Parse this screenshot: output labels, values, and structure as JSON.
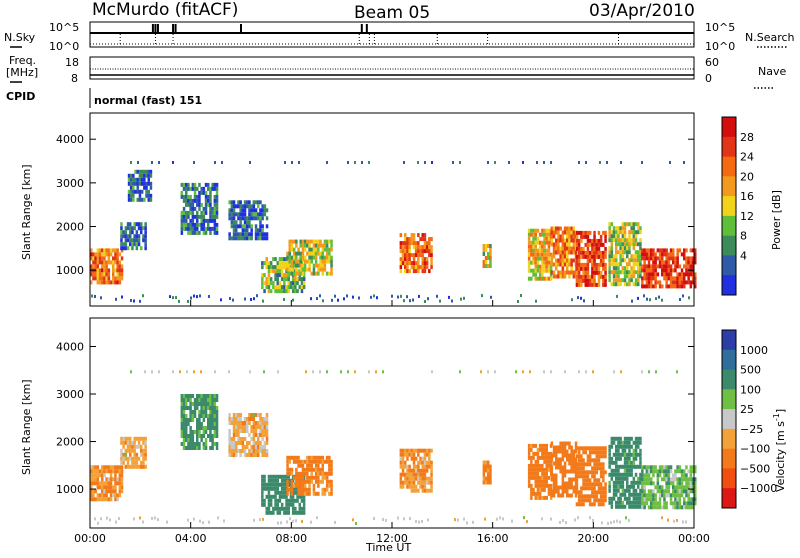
{
  "header": {
    "station": "McMurdo (fitACF)",
    "beam": "Beam 05",
    "date": "03/Apr/2010"
  },
  "colors": {
    "power": [
      "#2030e0",
      "#2e5aa8",
      "#3d8a5a",
      "#5fbf3a",
      "#f2d21a",
      "#f39a1e",
      "#f36a12",
      "#e23518",
      "#d40d0d"
    ],
    "velocity": [
      "#2c3ea6",
      "#2f6e9a",
      "#3b8a6b",
      "#6fbf44",
      "#c8c8c8",
      "#f3a23a",
      "#f37a1a",
      "#f24e12",
      "#dd1616"
    ]
  },
  "chart_data": [
    {
      "type": "line",
      "panel": "noise",
      "ylabel_left": "N.Sky",
      "ylabel_right": "N.Search",
      "ticks_left": [
        "10^5",
        "10^0"
      ],
      "ticks_right": [
        "10^5",
        "10^0"
      ]
    },
    {
      "type": "line",
      "panel": "frequency",
      "ylabel_left": "Freq.\n[MHz]",
      "ylabel_right": "Nave",
      "ticks_left": [
        "18",
        "8"
      ],
      "ticks_right": [
        "60",
        "0"
      ],
      "ylim_left": [
        8,
        18
      ],
      "ylim_right": [
        0,
        60
      ]
    },
    {
      "type": "table",
      "panel": "cpid",
      "label": "CPID",
      "value": "normal (fast) 151"
    },
    {
      "type": "heatmap",
      "panel": "power",
      "ylabel": "Slant Range [km]",
      "yticks": [
        "1000",
        "2000",
        "3000",
        "4000"
      ],
      "ylim": [
        180,
        4600
      ],
      "xlim": [
        0,
        24
      ],
      "colorbar": {
        "label": "Power [dB]",
        "ticks": [
          "28",
          "24",
          "20",
          "16",
          "12",
          "8",
          "4"
        ],
        "range": [
          0,
          30
        ]
      },
      "echo_regions": [
        {
          "t0": 0.0,
          "t1": 1.3,
          "r0": 750,
          "r1": 1500,
          "v": 21
        },
        {
          "t0": 1.2,
          "t1": 2.2,
          "r0": 1500,
          "r1": 2100,
          "v": 6
        },
        {
          "t0": 1.5,
          "t1": 2.4,
          "r0": 2600,
          "r1": 3300,
          "v": 5
        },
        {
          "t0": 3.6,
          "t1": 5.0,
          "r0": 1900,
          "r1": 3000,
          "v": 6
        },
        {
          "t0": 5.5,
          "t1": 7.0,
          "r0": 1700,
          "r1": 2600,
          "v": 5
        },
        {
          "t0": 6.8,
          "t1": 8.5,
          "r0": 500,
          "r1": 1300,
          "v": 12
        },
        {
          "t0": 7.8,
          "t1": 9.6,
          "r0": 900,
          "r1": 1700,
          "v": 14
        },
        {
          "t0": 12.3,
          "t1": 13.6,
          "r0": 1000,
          "r1": 1850,
          "v": 22
        },
        {
          "t0": 15.6,
          "t1": 15.9,
          "r0": 1100,
          "r1": 1600,
          "v": 15
        },
        {
          "t0": 17.4,
          "t1": 18.3,
          "r0": 800,
          "r1": 1950,
          "v": 17
        },
        {
          "t0": 18.3,
          "t1": 19.3,
          "r0": 900,
          "r1": 2000,
          "v": 20
        },
        {
          "t0": 19.3,
          "t1": 20.5,
          "r0": 700,
          "r1": 1900,
          "v": 25
        },
        {
          "t0": 20.6,
          "t1": 21.9,
          "r0": 650,
          "r1": 2100,
          "v": 14
        },
        {
          "t0": 21.9,
          "t1": 24.0,
          "r0": 600,
          "r1": 1500,
          "v": 26
        }
      ]
    },
    {
      "type": "heatmap",
      "panel": "velocity",
      "ylabel": "Slant Range [km]",
      "yticks": [
        "1000",
        "2000",
        "3000",
        "4000"
      ],
      "ylim": [
        180,
        4600
      ],
      "xlim": [
        0,
        24
      ],
      "xticks": [
        "00:00",
        "04:00",
        "08:00",
        "12:00",
        "16:00",
        "20:00",
        "00:00"
      ],
      "xlabel": "Time UT",
      "colorbar": {
        "label": "Velocity [m s",
        "label_sup": "-1",
        "label_end": "]",
        "ticks": [
          "1000",
          "500",
          "100",
          "25",
          "−25",
          "−100",
          "−500",
          "−1000"
        ]
      },
      "echo_regions": [
        {
          "t0": 0.0,
          "t1": 1.3,
          "r0": 750,
          "r1": 1500,
          "v": -100
        },
        {
          "t0": 1.2,
          "t1": 2.2,
          "r0": 1500,
          "r1": 2100,
          "v": -50
        },
        {
          "t0": 3.6,
          "t1": 5.0,
          "r0": 1900,
          "r1": 3000,
          "v": 150
        },
        {
          "t0": 5.5,
          "t1": 7.0,
          "r0": 1700,
          "r1": 2600,
          "v": -50
        },
        {
          "t0": 6.8,
          "t1": 8.5,
          "r0": 500,
          "r1": 1300,
          "v": 300
        },
        {
          "t0": 7.8,
          "t1": 9.6,
          "r0": 900,
          "r1": 1700,
          "v": -150
        },
        {
          "t0": 12.3,
          "t1": 13.6,
          "r0": 1000,
          "r1": 1850,
          "v": -100
        },
        {
          "t0": 15.6,
          "t1": 15.9,
          "r0": 1100,
          "r1": 1600,
          "v": -150
        },
        {
          "t0": 17.4,
          "t1": 18.3,
          "r0": 800,
          "r1": 1950,
          "v": -200
        },
        {
          "t0": 18.3,
          "t1": 19.3,
          "r0": 900,
          "r1": 2000,
          "v": -300
        },
        {
          "t0": 19.3,
          "t1": 20.5,
          "r0": 700,
          "r1": 1900,
          "v": -250
        },
        {
          "t0": 20.6,
          "t1": 21.9,
          "r0": 650,
          "r1": 2100,
          "v": 200
        },
        {
          "t0": 21.9,
          "t1": 24.0,
          "r0": 600,
          "r1": 1500,
          "v": 80
        }
      ]
    }
  ]
}
